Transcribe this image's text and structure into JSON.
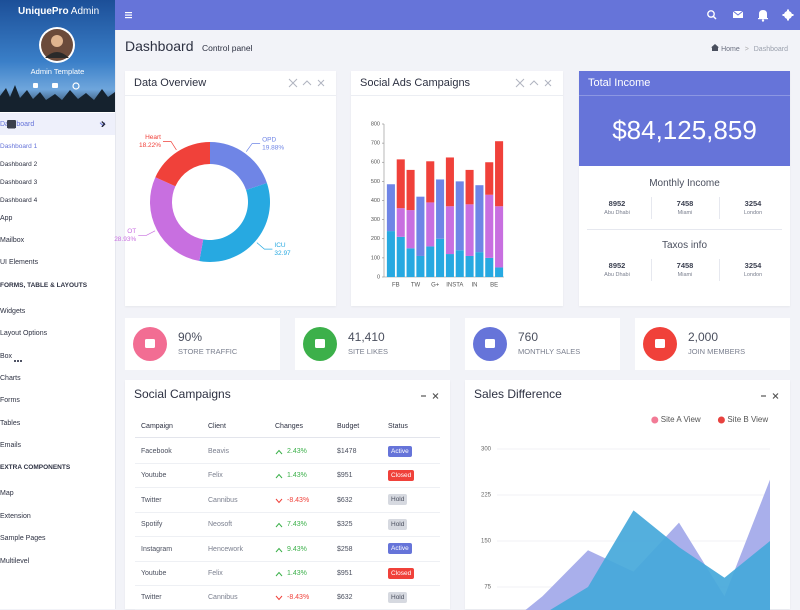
{
  "sidebar": {
    "brand": "UniquePro",
    "brand_suffix": "Admin",
    "user": "Admin Template",
    "menu": [
      {
        "label": "Dashboard",
        "kind": "item",
        "active": true,
        "open": true
      },
      {
        "label": "Dashboard 1",
        "kind": "sub",
        "active": true
      },
      {
        "label": "Dashboard 2",
        "kind": "sub"
      },
      {
        "label": "Dashboard 3",
        "kind": "sub"
      },
      {
        "label": "Dashboard 4",
        "kind": "sub"
      },
      {
        "label": "App",
        "kind": "item"
      },
      {
        "label": "Mailbox",
        "kind": "item"
      },
      {
        "label": "UI Elements",
        "kind": "item"
      },
      {
        "label": "FORMS, TABLE & LAYOUTS",
        "kind": "header"
      },
      {
        "label": "Widgets",
        "kind": "item"
      },
      {
        "label": "Layout Options",
        "kind": "item"
      },
      {
        "label": "Box",
        "kind": "item"
      },
      {
        "label": "Charts",
        "kind": "item"
      },
      {
        "label": "Forms",
        "kind": "item"
      },
      {
        "label": "Tables",
        "kind": "item"
      },
      {
        "label": "Emails",
        "kind": "item"
      },
      {
        "label": "EXTRA COMPONENTS",
        "kind": "header"
      },
      {
        "label": "Map",
        "kind": "item"
      },
      {
        "label": "Extension",
        "kind": "item"
      },
      {
        "label": "Sample Pages",
        "kind": "item"
      },
      {
        "label": "Multilevel",
        "kind": "item"
      }
    ]
  },
  "header": {
    "title": "Dashboard",
    "subtitle": "Control panel",
    "breadcrumb": [
      "Home",
      "Dashboard"
    ]
  },
  "income": {
    "title": "Total Income",
    "amount": "$84,125,859",
    "groups": [
      {
        "title": "Monthly Income",
        "stats": [
          {
            "value": "8952",
            "label": "Abu Dhabi"
          },
          {
            "value": "7458",
            "label": "Miami"
          },
          {
            "value": "3254",
            "label": "London"
          }
        ]
      },
      {
        "title": "Taxos info",
        "stats": [
          {
            "value": "8952",
            "label": "Abu Dhabi"
          },
          {
            "value": "7458",
            "label": "Miami"
          },
          {
            "value": "3254",
            "label": "London"
          }
        ]
      }
    ]
  },
  "stats": [
    {
      "value": "90%",
      "label": "STORE TRAFFIC",
      "color": "#f26d93"
    },
    {
      "value": "41,410",
      "label": "SITE LIKES",
      "color": "#3cb04a"
    },
    {
      "value": "760",
      "label": "MONTHLY SALES",
      "color": "#6674d9"
    },
    {
      "value": "2,000",
      "label": "JOIN MEMBERS",
      "color": "#f0413a"
    }
  ],
  "campaigns": {
    "title": "Social Campaigns",
    "columns": [
      "Campaign",
      "Client",
      "Changes",
      "Budget",
      "Status"
    ],
    "up_color": "#3cb04a",
    "down_color": "#f0413a",
    "rows": [
      {
        "campaign": "Facebook",
        "client": "Beavis",
        "change": "2.43%",
        "trend": "up",
        "budget": "$1478",
        "status": "Active",
        "badge": "#6674d9"
      },
      {
        "campaign": "Youtube",
        "client": "Felix",
        "change": "1.43%",
        "trend": "up",
        "budget": "$951",
        "status": "Closed",
        "badge": "#f0413a"
      },
      {
        "campaign": "Twitter",
        "client": "Cannibus",
        "change": "-8.43%",
        "trend": "down",
        "budget": "$632",
        "status": "Hold",
        "badge": "#d6d9e0"
      },
      {
        "campaign": "Spotify",
        "client": "Neosoft",
        "change": "7.43%",
        "trend": "up",
        "budget": "$325",
        "status": "Hold",
        "badge": "#d6d9e0"
      },
      {
        "campaign": "Instagram",
        "client": "Hencework",
        "change": "9.43%",
        "trend": "up",
        "budget": "$258",
        "status": "Active",
        "badge": "#6674d9"
      },
      {
        "campaign": "Youtube",
        "client": "Felix",
        "change": "1.43%",
        "trend": "up",
        "budget": "$951",
        "status": "Closed",
        "badge": "#f0413a"
      },
      {
        "campaign": "Twitter",
        "client": "Cannibus",
        "change": "-8.43%",
        "trend": "down",
        "budget": "$632",
        "status": "Hold",
        "badge": "#d6d9e0"
      }
    ]
  },
  "chart_data": [
    {
      "type": "pie",
      "title": "Data Overview",
      "donut": true,
      "categories": [
        "OPD",
        "ICU",
        "OT",
        "Heart"
      ],
      "values": [
        19.88,
        32.97,
        28.93,
        18.22
      ],
      "value_labels": [
        "19.88%",
        "32.97",
        "28.93%",
        "18.22%"
      ],
      "colors": [
        "#6f85e6",
        "#27a9e1",
        "#c86fe0",
        "#f0413a"
      ]
    },
    {
      "type": "bar",
      "title": "Social Ads Campaigns",
      "stacked": true,
      "categories": [
        "FB",
        null,
        "TW",
        null,
        "G+",
        null,
        "INSTA",
        null,
        "IN",
        null,
        "BE",
        null
      ],
      "series": [
        {
          "color": "#27a9e1",
          "values": [
            240,
            210,
            150,
            110,
            160,
            200,
            120,
            140,
            110,
            130,
            100,
            50
          ]
        },
        {
          "color": "#c86fe0",
          "values": [
            0,
            150,
            200,
            0,
            230,
            0,
            250,
            0,
            270,
            0,
            330,
            320
          ]
        },
        {
          "color": "#6f85e6",
          "values": [
            245,
            0,
            0,
            310,
            0,
            310,
            0,
            360,
            0,
            350,
            0,
            0
          ]
        },
        {
          "color": "#f0413a",
          "values": [
            0,
            255,
            210,
            0,
            215,
            0,
            255,
            0,
            180,
            0,
            170,
            340
          ]
        }
      ],
      "ylim": [
        0,
        800
      ],
      "yticks": [
        0,
        100,
        200,
        300,
        400,
        500,
        600,
        700,
        800
      ]
    },
    {
      "type": "area",
      "title": "Sales Difference",
      "categories": [
        null,
        null,
        null,
        null,
        null,
        null,
        null
      ],
      "series": [
        {
          "name": "Site A View",
          "color": "#f27b96",
          "fill": "#a9afeb",
          "values": [
            0,
            60,
            135,
            100,
            180,
            60,
            250
          ]
        },
        {
          "name": "Site B View",
          "color": "#e8423f",
          "fill": "#45a8da",
          "values": [
            0,
            30,
            75,
            200,
            140,
            90,
            150
          ]
        }
      ],
      "ylim": [
        0,
        300
      ],
      "yticks": [
        75,
        150,
        225,
        300
      ],
      "grid": true,
      "legend": "top-right"
    }
  ]
}
